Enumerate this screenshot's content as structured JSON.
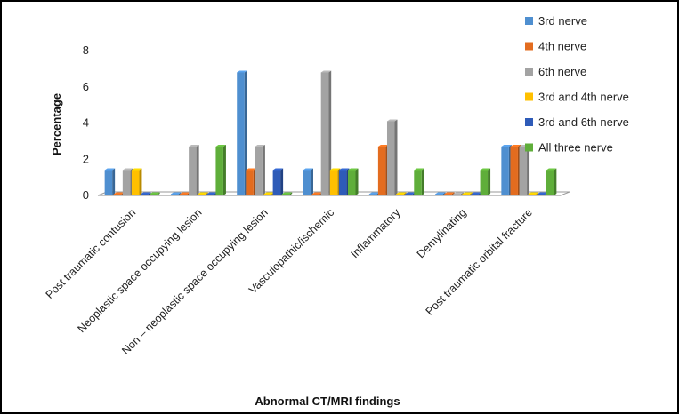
{
  "chart_data": {
    "type": "bar",
    "categories": [
      "Post traumatic contusion",
      "Neoplastic space occupying lesion",
      "Non – neoplastic space occupying lesion",
      "Vasculopathic/ischemic",
      "Inflammatory",
      "Demylinating",
      "Post traumatic  orbital fracture"
    ],
    "series": [
      {
        "name": "3rd nerve",
        "color": "#4f8fd0",
        "values": [
          1.4,
          0,
          6.8,
          1.4,
          0,
          0,
          2.7
        ]
      },
      {
        "name": "4th nerve",
        "color": "#e36c1f",
        "values": [
          0,
          0,
          1.4,
          0,
          2.7,
          0,
          2.7
        ]
      },
      {
        "name": "6th nerve",
        "color": "#a3a3a3",
        "values": [
          1.4,
          2.7,
          2.7,
          6.8,
          4.1,
          0,
          2.7
        ]
      },
      {
        "name": "3rd and 4th nerve",
        "color": "#ffc000",
        "values": [
          1.4,
          0,
          0,
          1.4,
          0,
          0,
          0
        ]
      },
      {
        "name": "3rd  and 6th nerve",
        "color": "#2e5bb8",
        "values": [
          0,
          0,
          1.4,
          1.4,
          0,
          0,
          0
        ]
      },
      {
        "name": "All three nerve",
        "color": "#5fae3a",
        "values": [
          0,
          2.7,
          0,
          1.4,
          1.4,
          1.4,
          1.4
        ]
      }
    ],
    "xlabel": "Abnormal CT/MRI findings",
    "ylabel": "Percentage",
    "ylim": [
      0,
      8
    ],
    "yticks": [
      "0",
      "2",
      "4",
      "6",
      "8"
    ],
    "grid": false,
    "legend_position": "right"
  }
}
